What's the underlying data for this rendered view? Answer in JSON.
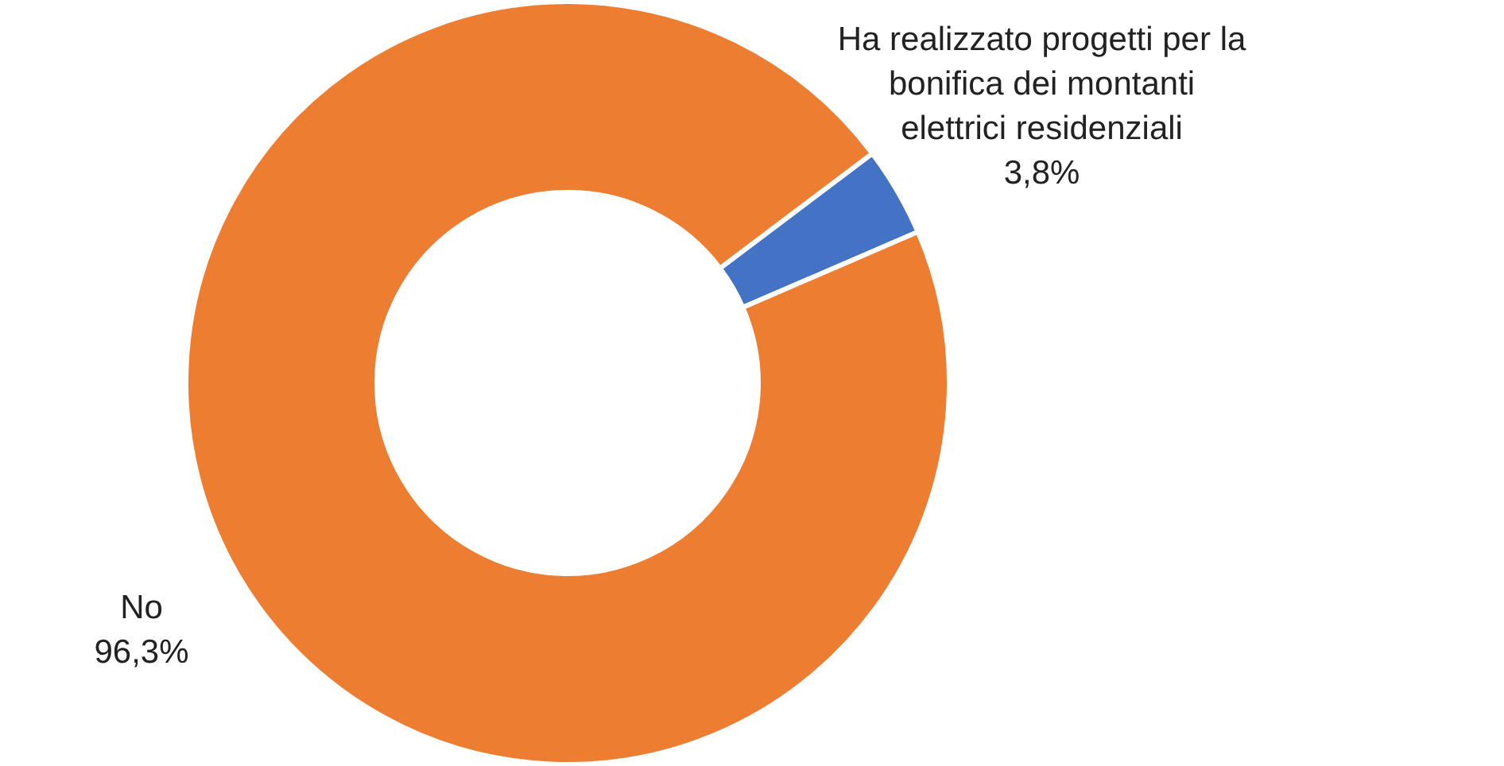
{
  "chart_data": {
    "type": "donut",
    "categories": [
      "Ha realizzato progetti per la bonifica dei montanti elettrici residenziali",
      "No"
    ],
    "values": [
      3.8,
      96.3
    ],
    "value_labels": [
      "3,8%",
      "96,3%"
    ],
    "colors": [
      "#4472c4",
      "#ed7d31"
    ]
  }
}
